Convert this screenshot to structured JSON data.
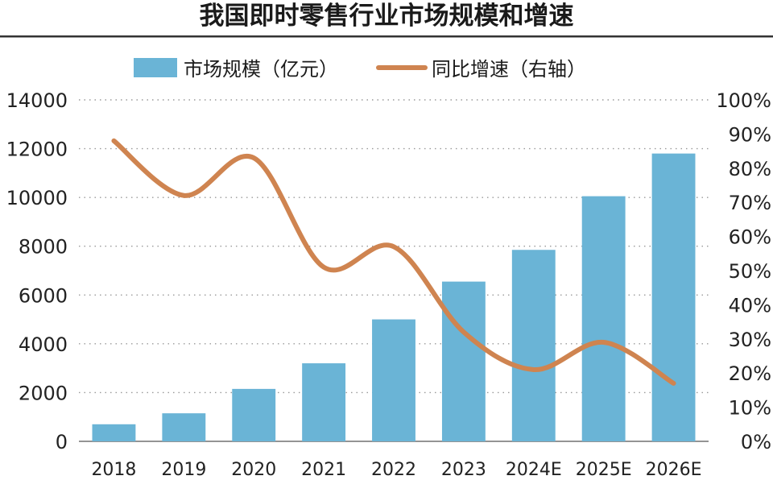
{
  "colors": {
    "bar": "#6ab4d6",
    "line": "#cf8450",
    "grid": "#9a9a9a",
    "text": "#222222"
  },
  "chart_data": {
    "type": "bar",
    "title": "我国即时零售行业市场规模和增速",
    "categories": [
      "2018",
      "2019",
      "2020",
      "2021",
      "2022",
      "2023",
      "2024E",
      "2025E",
      "2026E"
    ],
    "series": [
      {
        "name": "市场规模（亿元）",
        "type": "bar",
        "axis": "left",
        "values": [
          700,
          1150,
          2150,
          3200,
          5000,
          6550,
          7850,
          10050,
          11800
        ]
      },
      {
        "name": "同比增速（右轴）",
        "type": "line",
        "axis": "right",
        "values": [
          0.88,
          0.72,
          0.83,
          0.51,
          0.57,
          0.32,
          0.21,
          0.29,
          0.17
        ]
      }
    ],
    "y_left": {
      "min": 0,
      "max": 14000,
      "ticks": [
        "0",
        "2000",
        "4000",
        "6000",
        "8000",
        "10000",
        "12000",
        "14000"
      ]
    },
    "y_right": {
      "min": 0,
      "max": 1,
      "ticks": [
        "0%",
        "10%",
        "20%",
        "30%",
        "40%",
        "50%",
        "60%",
        "70%",
        "80%",
        "90%",
        "100%"
      ]
    },
    "grid": true,
    "legend": "top"
  }
}
